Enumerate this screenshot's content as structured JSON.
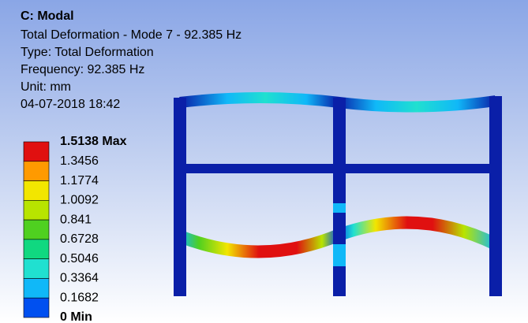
{
  "header": {
    "title": "C: Modal",
    "lines": [
      "Total Deformation - Mode 7 - 92.385 Hz",
      "Type: Total Deformation",
      "Frequency: 92.385 Hz",
      "Unit: mm",
      "04-07-2018 18:42"
    ]
  },
  "legend": {
    "labels": [
      "1.5138 Max",
      "1.3456",
      "1.1774",
      "1.0092",
      "0.841",
      "0.6728",
      "0.5046",
      "0.3364",
      "0.1682",
      "0 Min"
    ],
    "colors": [
      "#e01010",
      "#ff9a00",
      "#f2e600",
      "#b8e400",
      "#4fd020",
      "#10d880",
      "#20e0d0",
      "#10b8f8",
      "#0050f0"
    ]
  }
}
